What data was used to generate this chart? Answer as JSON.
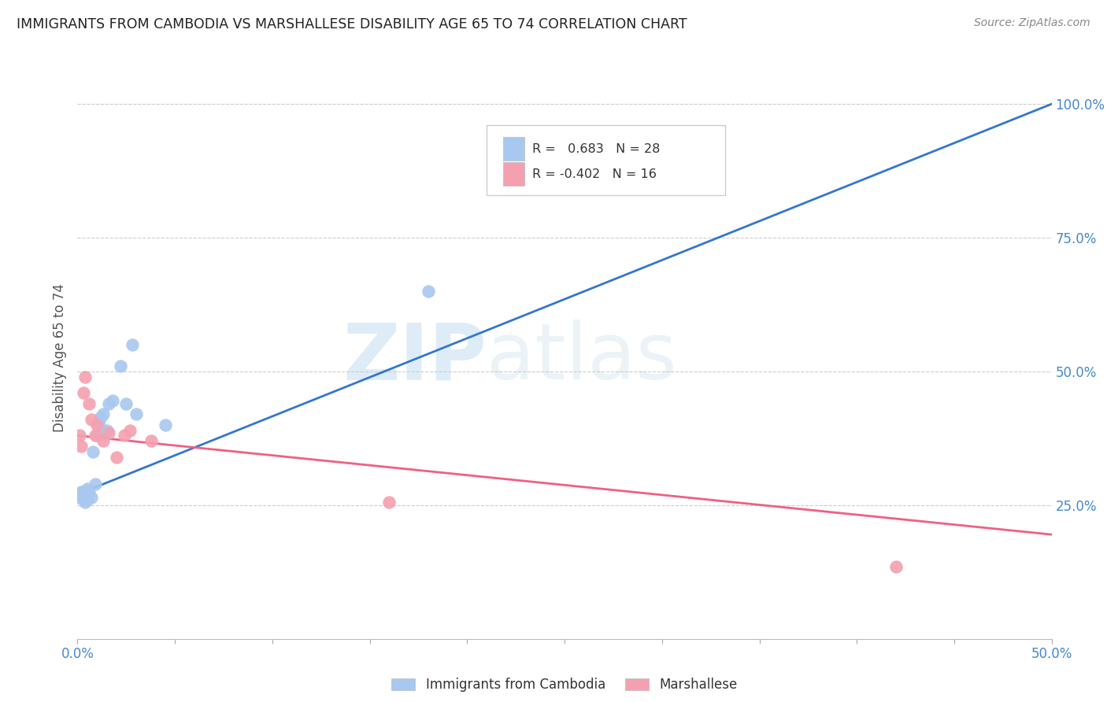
{
  "title": "IMMIGRANTS FROM CAMBODIA VS MARSHALLESE DISABILITY AGE 65 TO 74 CORRELATION CHART",
  "source": "Source: ZipAtlas.com",
  "ylabel": "Disability Age 65 to 74",
  "xlim": [
    0.0,
    0.5
  ],
  "ylim": [
    0.0,
    1.05
  ],
  "xticks": [
    0.0,
    0.05,
    0.1,
    0.15,
    0.2,
    0.25,
    0.3,
    0.35,
    0.4,
    0.45,
    0.5
  ],
  "xticklabels": [
    "0.0%",
    "",
    "",
    "",
    "",
    "",
    "",
    "",
    "",
    "",
    "50.0%"
  ],
  "yticks_right": [
    0.25,
    0.5,
    0.75,
    1.0
  ],
  "yticklabels_right": [
    "25.0%",
    "50.0%",
    "75.0%",
    "100.0%"
  ],
  "cambodia_R": 0.683,
  "cambodia_N": 28,
  "marshallese_R": -0.402,
  "marshallese_N": 16,
  "cambodia_color": "#a8c8f0",
  "marshallese_color": "#f4a0b0",
  "cambodia_line_color": "#3377cc",
  "marshallese_line_color": "#f06080",
  "watermark_zip": "ZIP",
  "watermark_atlas": "atlas",
  "background_color": "#ffffff",
  "grid_color": "#cccccc",
  "cambodia_x": [
    0.001,
    0.001,
    0.002,
    0.002,
    0.003,
    0.003,
    0.003,
    0.004,
    0.004,
    0.005,
    0.005,
    0.006,
    0.007,
    0.008,
    0.009,
    0.01,
    0.011,
    0.012,
    0.013,
    0.015,
    0.016,
    0.018,
    0.022,
    0.025,
    0.028,
    0.03,
    0.045,
    0.18
  ],
  "cambodia_y": [
    0.27,
    0.265,
    0.27,
    0.275,
    0.26,
    0.265,
    0.275,
    0.255,
    0.27,
    0.28,
    0.26,
    0.275,
    0.265,
    0.35,
    0.29,
    0.38,
    0.4,
    0.415,
    0.42,
    0.39,
    0.44,
    0.445,
    0.51,
    0.44,
    0.55,
    0.42,
    0.4,
    0.65
  ],
  "marshallese_x": [
    0.001,
    0.002,
    0.003,
    0.004,
    0.006,
    0.007,
    0.009,
    0.01,
    0.013,
    0.016,
    0.02,
    0.024,
    0.027,
    0.038,
    0.16,
    0.42
  ],
  "marshallese_y": [
    0.38,
    0.36,
    0.46,
    0.49,
    0.44,
    0.41,
    0.38,
    0.4,
    0.37,
    0.385,
    0.34,
    0.38,
    0.39,
    0.37,
    0.255,
    0.135
  ],
  "cam_line_x0": 0.0,
  "cam_line_y0": 0.27,
  "cam_line_x1": 0.5,
  "cam_line_y1": 1.0,
  "mar_line_x0": 0.0,
  "mar_line_y0": 0.38,
  "mar_line_x1": 0.5,
  "mar_line_y1": 0.195
}
